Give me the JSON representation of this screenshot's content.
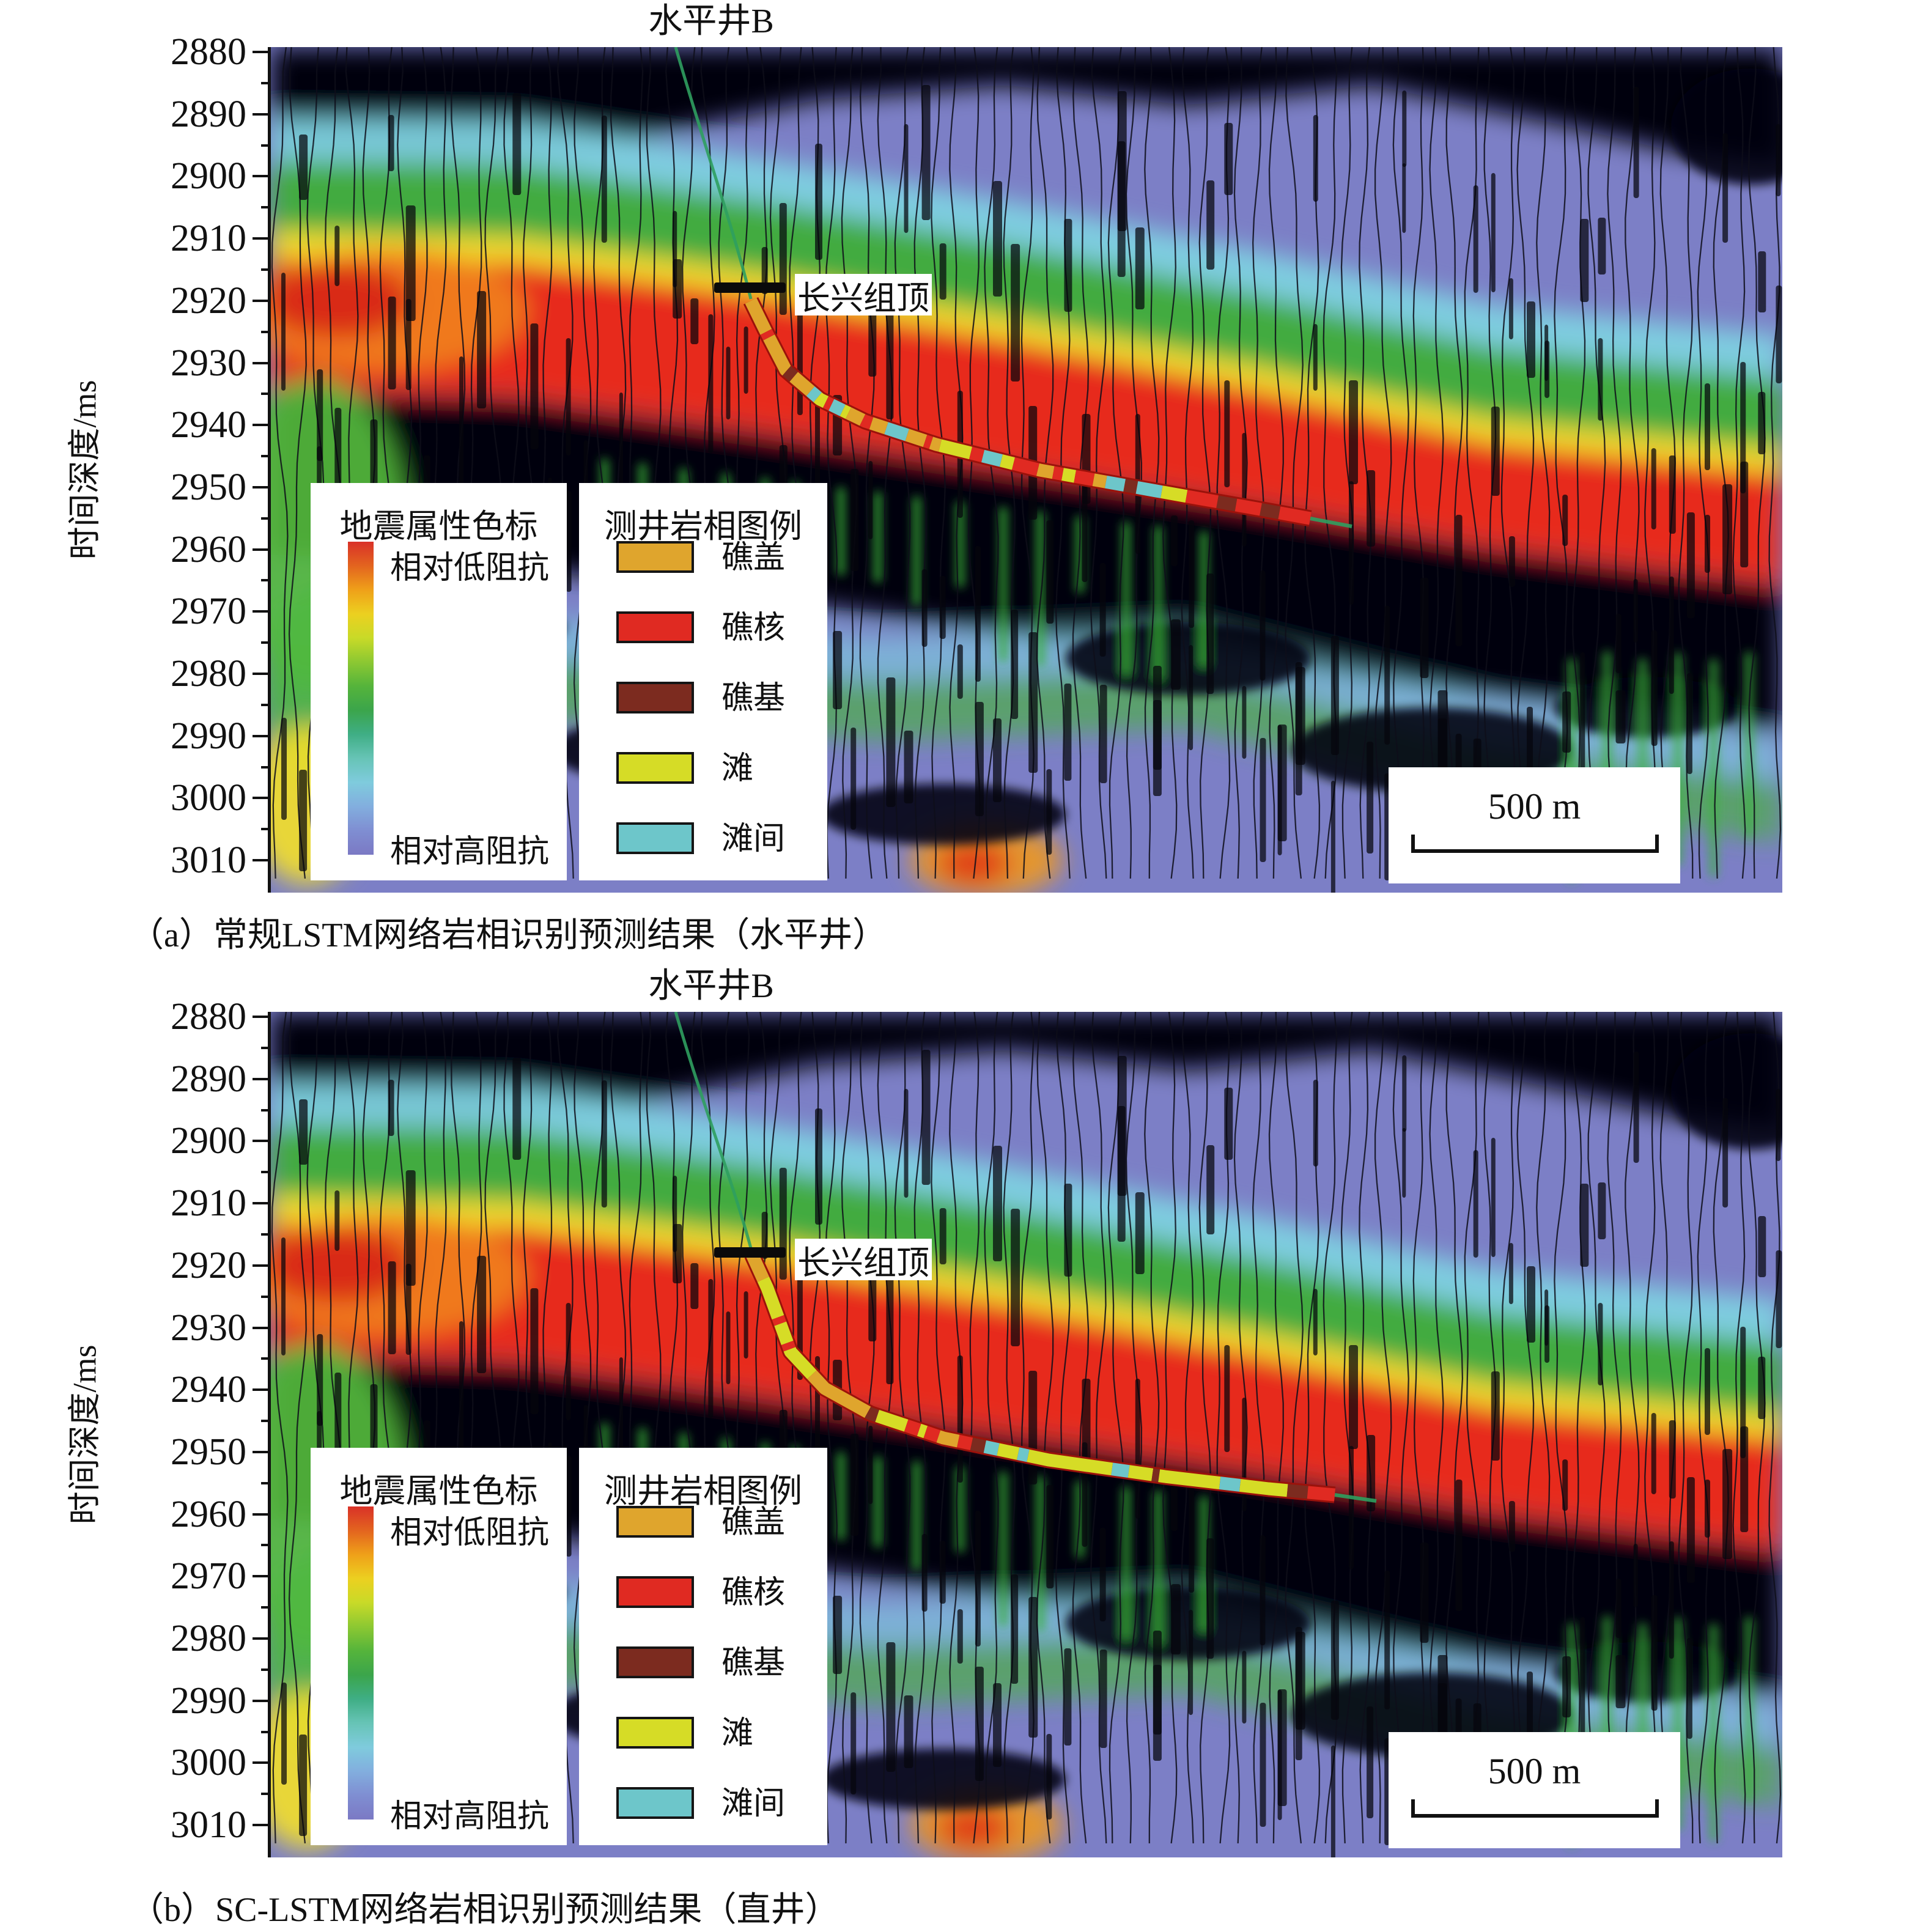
{
  "axis": {
    "label": "时间深度/ms",
    "ticks": [
      2880,
      2890,
      2900,
      2910,
      2920,
      2930,
      2940,
      2950,
      2960,
      2970,
      2980,
      2990,
      3000,
      3010
    ]
  },
  "attribute_legend": {
    "title": "地震属性色标",
    "low_impedance_label": "相对低阻抗",
    "high_impedance_label": "相对高阻抗",
    "gradient_colors": [
      "#d93128",
      "#e3641f",
      "#efa019",
      "#ecd020",
      "#c8da28",
      "#8cc832",
      "#55b43b",
      "#3ba54b",
      "#3fae85",
      "#67c4b6",
      "#7fcbdd",
      "#82aede",
      "#7f8ed2",
      "#7b79c4"
    ]
  },
  "facies_legend": {
    "title": "测井岩相图例",
    "items": [
      {
        "label": "礁盖",
        "color": "#dfa52d"
      },
      {
        "label": "礁核",
        "color": "#e02a22"
      },
      {
        "label": "礁基",
        "color": "#7c2b1f"
      },
      {
        "label": "滩",
        "color": "#d6dc26"
      },
      {
        "label": "滩间",
        "color": "#6dc6ca"
      }
    ]
  },
  "panels": [
    {
      "well_title": "水平井B",
      "horizon_label": "长兴组顶",
      "scale_bar_label": "500 m",
      "caption": "（a）常规LSTM网络岩相识别预测结果（水平井）"
    },
    {
      "well_title": "水平井B",
      "horizon_label": "长兴组顶",
      "scale_bar_label": "500 m",
      "caption": "（b）SC-LSTM网络岩相识别预测结果（直井）"
    }
  ],
  "chart_data": [
    {
      "type": "heatmap",
      "panel": "a",
      "title": "水平井B",
      "ylabel": "时间深度/ms",
      "yticks": [
        2880,
        2890,
        2900,
        2910,
        2920,
        2930,
        2940,
        2950,
        2960,
        2970,
        2980,
        2990,
        3000,
        3010
      ],
      "ylim": [
        2876,
        3016
      ],
      "grid": false,
      "legend_position": "lower-left",
      "scale_bar_m": 500,
      "horizon": {
        "label": "长兴组顶",
        "time_ms": 2918
      },
      "well_path_ms": [
        [
          0.318,
          2920
        ],
        [
          0.333,
          2927
        ],
        [
          0.347,
          2933
        ],
        [
          0.368,
          2937
        ],
        [
          0.398,
          2940
        ],
        [
          0.445,
          2942
        ],
        [
          0.515,
          2944
        ],
        [
          0.6,
          2946
        ],
        [
          0.685,
          2949
        ],
        [
          0.755,
          2951
        ],
        [
          0.81,
          2953
        ]
      ],
      "facies_sequence": [
        [
          0.0,
          0.055,
          "礁盖"
        ],
        [
          0.055,
          0.065,
          "礁核"
        ],
        [
          0.065,
          0.125,
          "礁盖"
        ],
        [
          0.125,
          0.14,
          "礁基"
        ],
        [
          0.14,
          0.175,
          "礁盖"
        ],
        [
          0.175,
          0.19,
          "滩间"
        ],
        [
          0.19,
          0.205,
          "滩"
        ],
        [
          0.205,
          0.215,
          "礁核"
        ],
        [
          0.215,
          0.235,
          "滩间"
        ],
        [
          0.235,
          0.245,
          "滩"
        ],
        [
          0.245,
          0.27,
          "礁盖"
        ],
        [
          0.27,
          0.285,
          "礁核"
        ],
        [
          0.285,
          0.31,
          "礁盖"
        ],
        [
          0.31,
          0.345,
          "滩间"
        ],
        [
          0.345,
          0.375,
          "礁盖"
        ],
        [
          0.375,
          0.385,
          "礁核"
        ],
        [
          0.385,
          0.4,
          "礁盖"
        ],
        [
          0.4,
          0.45,
          "滩"
        ],
        [
          0.45,
          0.47,
          "礁核"
        ],
        [
          0.47,
          0.5,
          "滩间"
        ],
        [
          0.5,
          0.52,
          "滩"
        ],
        [
          0.52,
          0.56,
          "礁核"
        ],
        [
          0.56,
          0.585,
          "礁盖"
        ],
        [
          0.585,
          0.6,
          "礁核"
        ],
        [
          0.6,
          0.62,
          "滩"
        ],
        [
          0.62,
          0.65,
          "礁核"
        ],
        [
          0.65,
          0.67,
          "礁盖"
        ],
        [
          0.67,
          0.7,
          "滩间"
        ],
        [
          0.7,
          0.72,
          "礁基"
        ],
        [
          0.72,
          0.76,
          "滩间"
        ],
        [
          0.76,
          0.8,
          "滩"
        ],
        [
          0.8,
          0.85,
          "礁核"
        ],
        [
          0.85,
          0.88,
          "礁基"
        ],
        [
          0.88,
          0.92,
          "礁核"
        ],
        [
          0.92,
          0.95,
          "礁基"
        ],
        [
          0.95,
          1.0,
          "礁核"
        ]
      ]
    },
    {
      "type": "heatmap",
      "panel": "b",
      "title": "水平井B",
      "ylabel": "时间深度/ms",
      "yticks": [
        2880,
        2890,
        2900,
        2910,
        2920,
        2930,
        2940,
        2950,
        2960,
        2970,
        2980,
        2990,
        3000,
        3010
      ],
      "ylim": [
        2876,
        3016
      ],
      "grid": false,
      "legend_position": "lower-left",
      "scale_bar_m": 500,
      "horizon": {
        "label": "长兴组顶",
        "time_ms": 2918
      },
      "well_path_ms": [
        [
          0.318,
          2918
        ],
        [
          0.333,
          2925
        ],
        [
          0.35,
          2934
        ],
        [
          0.37,
          2940
        ],
        [
          0.4,
          2943
        ],
        [
          0.45,
          2945
        ],
        [
          0.52,
          2947
        ],
        [
          0.6,
          2950
        ],
        [
          0.69,
          2953
        ],
        [
          0.76,
          2955
        ],
        [
          0.83,
          2957
        ]
      ],
      "facies_sequence": [
        [
          0.0,
          0.04,
          "礁盖"
        ],
        [
          0.04,
          0.1,
          "滩"
        ],
        [
          0.1,
          0.11,
          "礁核"
        ],
        [
          0.11,
          0.14,
          "滩"
        ],
        [
          0.14,
          0.15,
          "礁核"
        ],
        [
          0.15,
          0.2,
          "滩"
        ],
        [
          0.2,
          0.3,
          "礁盖"
        ],
        [
          0.3,
          0.315,
          "礁基"
        ],
        [
          0.315,
          0.36,
          "滩"
        ],
        [
          0.36,
          0.38,
          "礁核"
        ],
        [
          0.38,
          0.39,
          "滩"
        ],
        [
          0.39,
          0.41,
          "礁核"
        ],
        [
          0.41,
          0.44,
          "礁盖"
        ],
        [
          0.44,
          0.46,
          "礁核"
        ],
        [
          0.46,
          0.48,
          "礁基"
        ],
        [
          0.48,
          0.5,
          "滩间"
        ],
        [
          0.5,
          0.53,
          "滩"
        ],
        [
          0.53,
          0.545,
          "滩间"
        ],
        [
          0.545,
          0.67,
          "滩"
        ],
        [
          0.67,
          0.695,
          "滩间"
        ],
        [
          0.695,
          0.73,
          "滩"
        ],
        [
          0.73,
          0.74,
          "礁基"
        ],
        [
          0.74,
          0.83,
          "滩"
        ],
        [
          0.83,
          0.86,
          "滩间"
        ],
        [
          0.86,
          0.93,
          "滩"
        ],
        [
          0.93,
          0.96,
          "礁基"
        ],
        [
          0.96,
          1.0,
          "礁核"
        ]
      ]
    }
  ]
}
